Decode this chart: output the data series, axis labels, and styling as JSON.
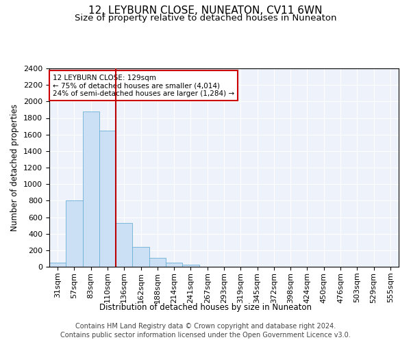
{
  "title": "12, LEYBURN CLOSE, NUNEATON, CV11 6WN",
  "subtitle": "Size of property relative to detached houses in Nuneaton",
  "xlabel": "Distribution of detached houses by size in Nuneaton",
  "ylabel": "Number of detached properties",
  "categories": [
    "31sqm",
    "57sqm",
    "83sqm",
    "110sqm",
    "136sqm",
    "162sqm",
    "188sqm",
    "214sqm",
    "241sqm",
    "267sqm",
    "293sqm",
    "319sqm",
    "345sqm",
    "372sqm",
    "398sqm",
    "424sqm",
    "450sqm",
    "476sqm",
    "503sqm",
    "529sqm",
    "555sqm"
  ],
  "bar_values": [
    50,
    800,
    1880,
    1650,
    530,
    240,
    110,
    50,
    25,
    0,
    0,
    0,
    0,
    0,
    0,
    0,
    0,
    0,
    0,
    0,
    0
  ],
  "bar_color": "#cce0f5",
  "bar_edge_color": "#6bafd6",
  "property_line_x": 3.5,
  "property_line_color": "#bb0000",
  "ylim": [
    0,
    2400
  ],
  "yticks": [
    0,
    200,
    400,
    600,
    800,
    1000,
    1200,
    1400,
    1600,
    1800,
    2000,
    2200,
    2400
  ],
  "annotation_title": "12 LEYBURN CLOSE: 129sqm",
  "annotation_line1": "← 75% of detached houses are smaller (4,014)",
  "annotation_line2": "24% of semi-detached houses are larger (1,284) →",
  "annotation_box_color": "#ffffff",
  "annotation_box_edge": "#cc0000",
  "footer1": "Contains HM Land Registry data © Crown copyright and database right 2024.",
  "footer2": "Contains public sector information licensed under the Open Government Licence v3.0.",
  "bg_color": "#eef2fa",
  "title_fontsize": 11,
  "subtitle_fontsize": 9.5,
  "axis_label_fontsize": 8.5,
  "tick_fontsize": 8,
  "footer_fontsize": 7
}
